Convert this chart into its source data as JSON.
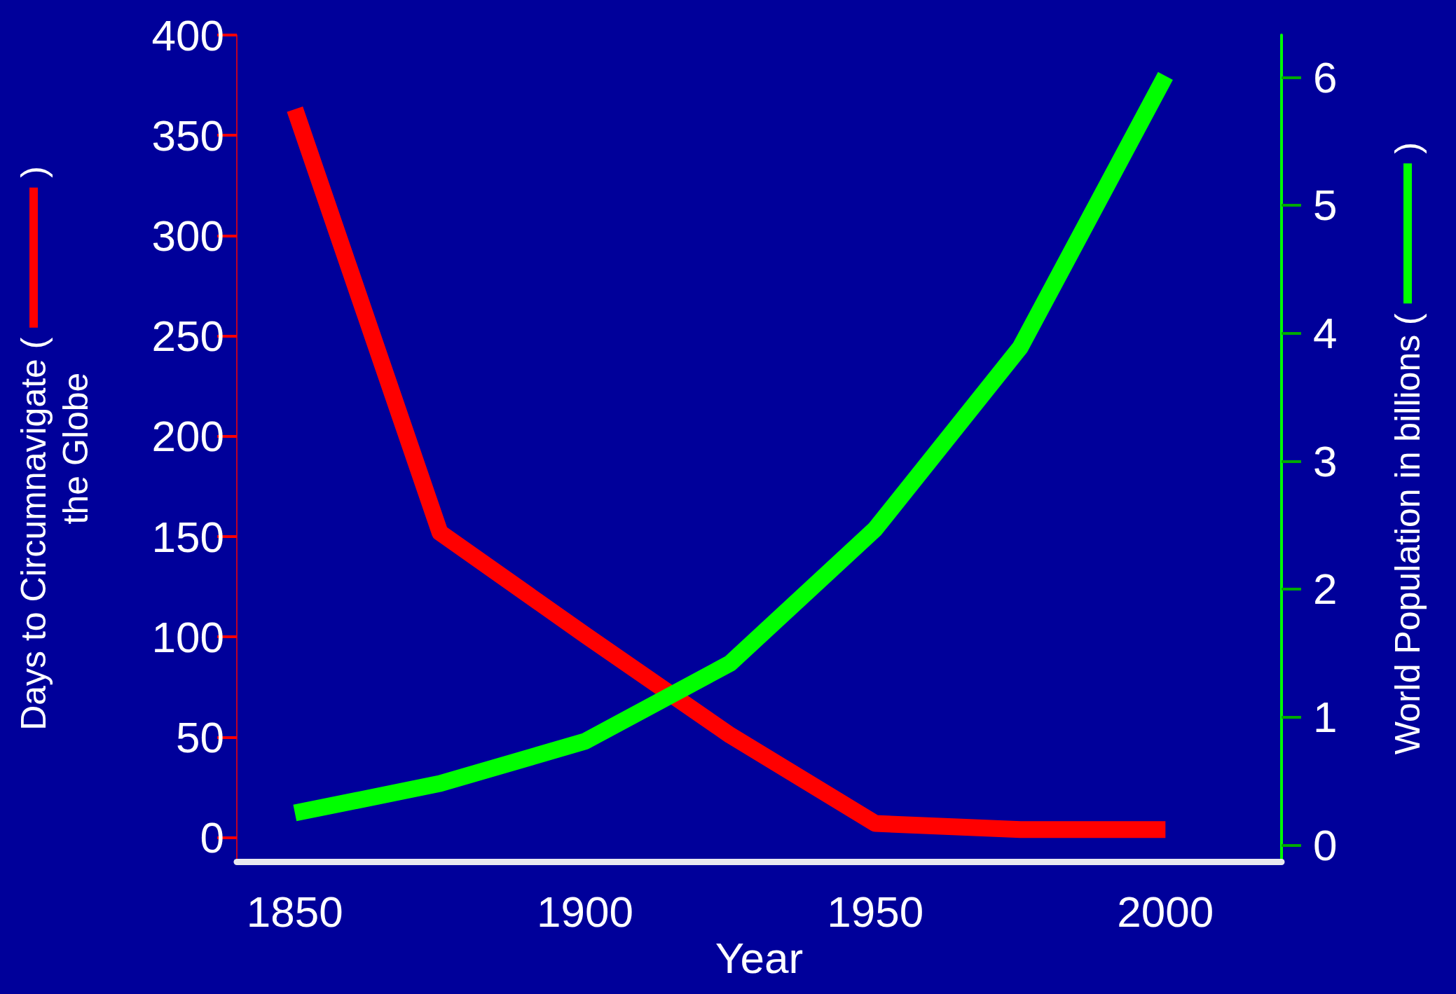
{
  "chart_data": {
    "type": "line",
    "xlabel": "Year",
    "ylabel": "Days to Circumnavigate ( )\nthe Globe",
    "y2label": "World Population in billions ( )",
    "x": [
      1850,
      1875,
      1900,
      1925,
      1950,
      1975,
      2000
    ],
    "series": [
      {
        "color": "#ff0000",
        "values": [
          363,
          152,
          101,
          51,
          7,
          4,
          4
        ]
      },
      {
        "color": "#00ff00",
        "axis": "y2",
        "values": [
          0.25,
          0.48,
          0.81,
          1.42,
          2.47,
          3.89,
          6.01
        ]
      }
    ],
    "xlim": [
      1840,
      2020
    ],
    "xticks": [
      1850,
      1900,
      1950,
      2000
    ],
    "ylim": [
      -12,
      400
    ],
    "yticks": [
      0,
      50,
      100,
      150,
      200,
      250,
      300,
      350,
      400
    ],
    "y2lim": [
      -0.13,
      6.33
    ],
    "y2ticks": [
      0,
      1,
      2,
      3,
      4,
      5,
      6
    ],
    "grid": false,
    "marker": "none",
    "line_style": "solid"
  }
}
